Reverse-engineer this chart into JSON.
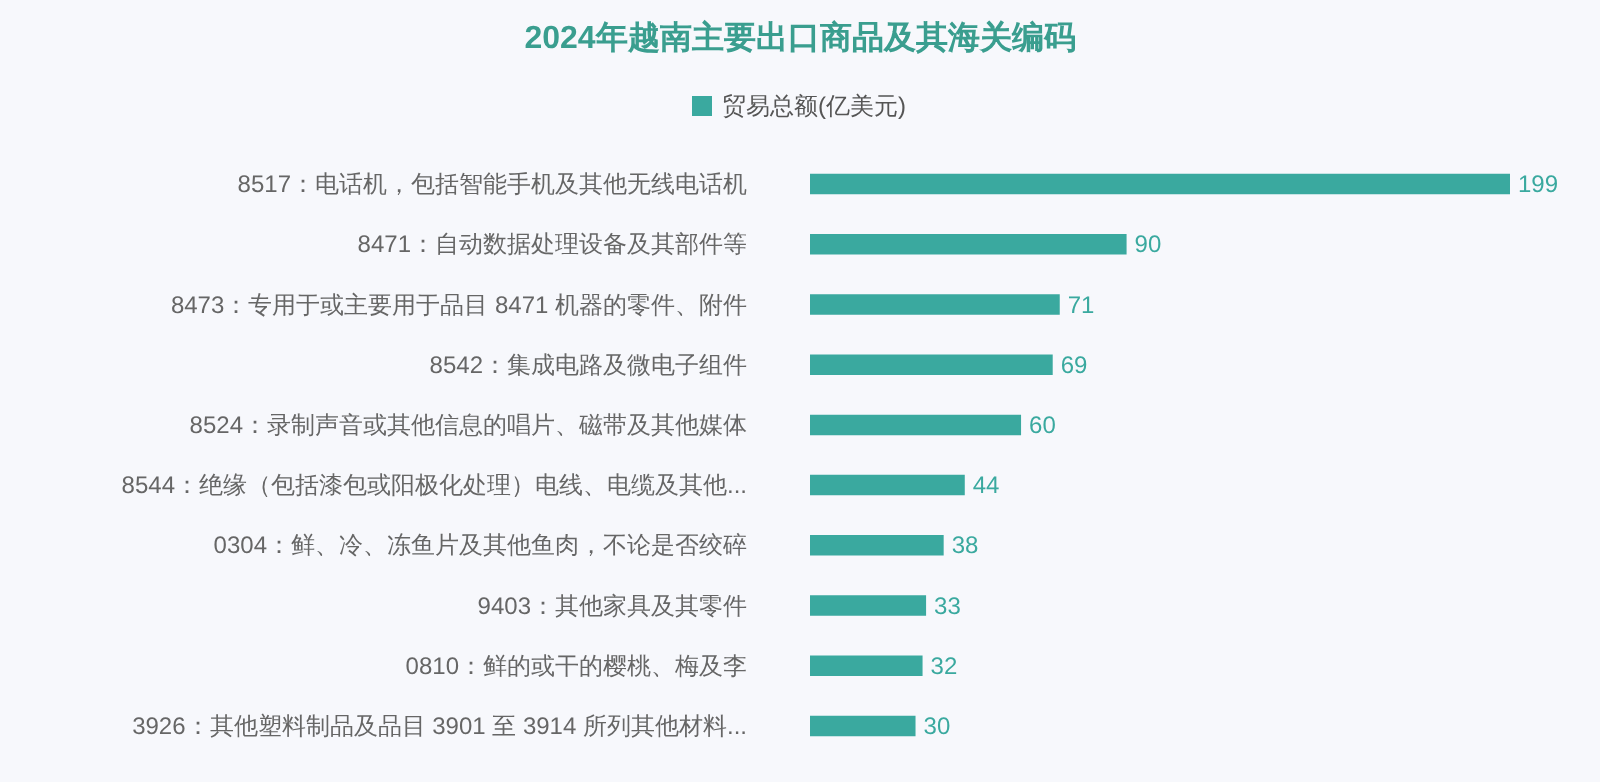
{
  "chart_data": {
    "type": "bar",
    "title": "2024年越南主要出口商品及其海关编码",
    "orientation": "horizontal",
    "relative": false,
    "categories": [
      "8517：电话机，包括智能手机及其他无线电话机",
      "8471：自动数据处理设备及其部件等",
      "8473：专用于或主要用于品目 8471 机器的零件、附件",
      "8542：集成电路及微电子组件",
      "8524：录制声音或其他信息的唱片、磁带及其他媒体",
      "8544：绝缘（包括漆包或阳极化处理）电线、电缆及其他...",
      "0304：鲜、冷、冻鱼片及其他鱼肉，不论是否绞碎",
      "9403：其他家具及其零件",
      "0810：鲜的或干的樱桃、梅及李",
      "3926：其他塑料制品及品目 3901 至 3914 所列其他材料..."
    ],
    "series": [
      {
        "name": "贸易总额(亿美元)",
        "color": "#3aa99f",
        "values": [
          199,
          90,
          71,
          69,
          60,
          44,
          38,
          33,
          32,
          30
        ]
      }
    ],
    "data_labels": true,
    "legend": "top"
  }
}
